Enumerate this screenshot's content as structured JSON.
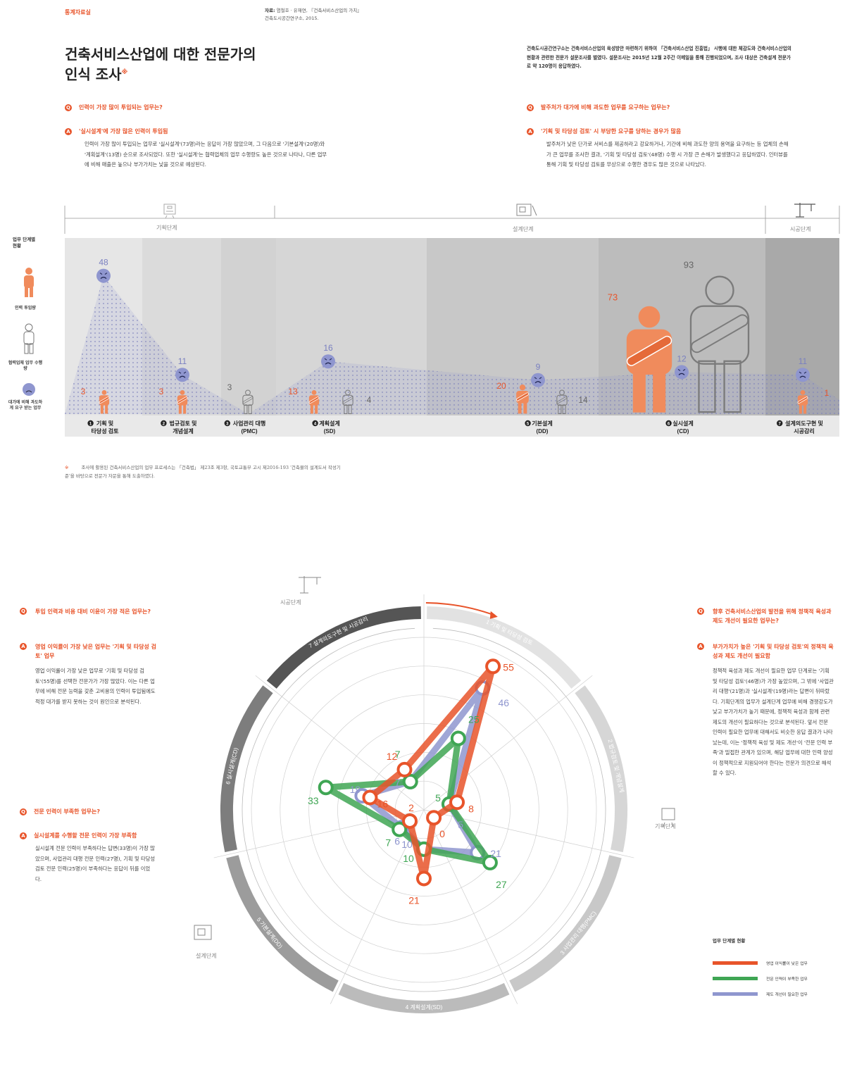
{
  "header": {
    "section_label": "통계자료실",
    "source_prefix": "자료:",
    "source_line1": "염철호 · 유재연, 『건축서비스산업의 가치』",
    "source_line2": "건축도시공간연구소, 2015.",
    "title_line1": "건축서비스산업에 대한 전문가의",
    "title_line2": "인식 조사",
    "title_mark": "※",
    "intro": "건축도시공간연구소는 건축서비스산업의 육성방안 마련하기 위하여 「건축서비스산업 진흥법」 시행에 대한 체감도와 건축서비스산업의 현황과 관련한 전문가 설문조사를 벌였다. 설문조사는 2015년 12월 2주간 이메일을 통해 진행되었으며, 조사 대상은 건축설계 전문가로 약 120명이 응답하였다."
  },
  "qa": {
    "q_mark": "Q",
    "a_mark": "A",
    "q1": "인력이 가장 많이 투입되는 업무는?",
    "a1": "'실시설계'에 가장 많은 인력이 투입됨",
    "a1_body": "인력이 가장 많이 투입되는 업무로 '실시설계'(73명)라는 응답이 가장 많았으며, 그 다음으로 '기본설계'(20명)와 '계획설계'(13명) 순으로 조사되었다. 또한 '실시설계'는 협력업체의 업무 수행량도 높은 것으로 나타나, 다른 업무에 비해 매출은 높으나 부가가치는 낮을 것으로 예상된다.",
    "q2": "발주처가 대가에 비해 과도한 업무를 요구하는 업무는?",
    "a2": "'기획 및 타당성 검토' 시 부당한 요구를 당하는 경우가 많음",
    "a2_body": "발주처가 낮은 단가로 서비스를 제공하라고 강요하거나, 기간에 비해 과도한 양의 용역을 요구하는 등 업체의 손해가 큰 업무를 조사한 결과, '기획 및 타당성 검토'(48명) 수행 시 가장 큰 손해가 발생했다고 응답하였다. 인터뷰를 통해 기획 및 타당성 검토를 무상으로 수행한 경우도 많은 것으로 나타났다.",
    "q3": "투입 인력과 비용 대비 이윤이 가장 적은 업무는?",
    "a3": "영업 이익률이 가장 낮은 업무는 '기획 및 타당성 검토' 업무",
    "a3_body": "영업 이익률이 가장 낮은 업무로 '기획 및 타당성 검토'(55명)를 선택한 전문가가 가장 많았다. 이는 다른 업무에 비해 전문 능력을 갖춘 고비용의 인력이 투입됨에도 적정 대가를 받지 못하는 것이 원인으로 분석된다.",
    "q4": "전문 인력이 부족한 업무는?",
    "a4": "실시설계를 수행할 전문 인력이 가장 부족함",
    "a4_body": "실시설계 전문 인력이 부족하다는 답변(33명)이 가장 많았으며, 사업관리 대행 전문 인력(27명), 기획 및 타당성 검토 전문 인력(25명)이 부족하다는 응답이 뒤를 이었다.",
    "q5": "향후 건축서비스산업의 발전을 위해 정책적 육성과 제도 개선이 필요한 업무는?",
    "a5": "부가가치가 높은 '기획 및 타당성 검토'의 정책적 육성과 제도 개선이 필요함",
    "a5_body": "정책적 육성과 제도 개선이 필요한 업무 단계로는 '기획 및 타당성 검토'(46명)가 가장 높았으며, 그 밖에 '사업관리 대행'(21명)과 '실시설계'(19명)라는 답변이 뒤따랐다. 기획단계의 업무가 설계단계 업무에 비해 경쟁강도가 낮고 부가가치가 높기 때문에, 정책적 육성과 함께 관련 제도의 개선이 필요하다는 것으로 분석된다. 앞서 전문 인력이 필요한 업무에 대해서도 비슷한 응답 결과가 나타났는데, 이는 '정책적 육성 및 제도 개선'이 '전문 인력 부족'과 밀접한 관계가 있으며, 해당 업무에 대한 인력 양성이 정책적으로 지원되어야 한다는 전문가 의견으로 해석할 수 있다."
  },
  "legend_left": {
    "title": "업무 단계별 현황",
    "manpower": "인력 투입량",
    "partner": "협력업체 업무 수행량",
    "excess": "대가에 비해 과도하게 요구 받는 업무"
  },
  "stages_top": {
    "planning": "기획단계",
    "design": "설계단계",
    "construction": "시공단계"
  },
  "footnote": {
    "mark": "※",
    "text": "조사에 활용된 건축서비스산업의 업무 프로세스는 「건축법」 제23조 제3항, 국토교통부 고시 제2016-193 '건축물의 설계도서 작성기준'을 바탕으로 전문가 자문을 통해 도출하였다."
  },
  "radar_legend": {
    "title": "업무 단계별 현황",
    "items": [
      "영업 이익률이 낮은 업무",
      "전문 인력이 부족한 업무",
      "제도 개선이 필요한 업무"
    ]
  },
  "radar_stage_labels": {
    "construction": "시공단계",
    "planning": "기획단계",
    "design": "설계단계"
  },
  "colors": {
    "orange": "#e8542a",
    "orange_fig": "#f08b5c",
    "green": "#3fa654",
    "blue": "#8f96cf",
    "gray_fig": "#888888"
  },
  "chart_data": [
    {
      "type": "bar",
      "categories": [
        "기획 및 타당성 검토",
        "법규검토 및 개념설계",
        "사업관리 대행 (PMC)",
        "계획설계 (SD)",
        "기본설계 (DD)",
        "실시설계 (CD)",
        "설계의도구현 및 시공감리"
      ],
      "category_numbers": [
        "1",
        "2",
        "3",
        "4",
        "5",
        "6",
        "7"
      ],
      "series": [
        {
          "name": "인력 투입량",
          "values": [
            3,
            3,
            null,
            13,
            20,
            73,
            1
          ]
        },
        {
          "name": "협력업체 업무 수행량",
          "values": [
            null,
            null,
            3,
            4,
            14,
            93,
            null
          ]
        },
        {
          "name": "대가에 비해 과도하게 요구 받는 업무",
          "values": [
            48,
            11,
            null,
            16,
            9,
            12,
            11
          ]
        }
      ]
    },
    {
      "type": "radar",
      "axes": [
        "기획 및 타당성 검토",
        "법규검토 및 개념설계",
        "사업관리 대행(PMC)",
        "계획설계(SD)",
        "기본설계(DD)",
        "실시설계(CD)",
        "설계의도구현 및 시공감리"
      ],
      "axis_numbers": [
        "1",
        "2",
        "3",
        "4",
        "5",
        "6",
        "7"
      ],
      "series": [
        {
          "name": "영업 이익률이 낮은 업무",
          "values": [
            55,
            8,
            0,
            21,
            2,
            16,
            12
          ]
        },
        {
          "name": "전문 인력이 부족한 업무",
          "values": [
            25,
            5,
            27,
            10,
            7,
            33,
            7
          ]
        },
        {
          "name": "제도 개선이 필요한 업무",
          "values": [
            46,
            5,
            21,
            10,
            6,
            19,
            7
          ]
        }
      ]
    }
  ]
}
